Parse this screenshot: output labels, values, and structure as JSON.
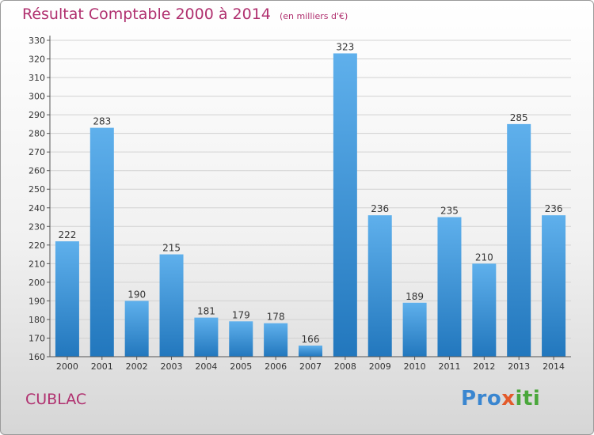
{
  "title": "Résultat Comptable 2000 à 2014",
  "subtitle": "(en milliers d'€)",
  "place": "CUBLAC",
  "logo": {
    "p1": "Pro",
    "p2": "x",
    "p3": "iti"
  },
  "colors": {
    "title": "#b0306f",
    "bar_top": "#5fb0ec",
    "bar_bottom": "#2277bd"
  },
  "chart_data": {
    "type": "bar",
    "categories": [
      "2000",
      "2001",
      "2002",
      "2003",
      "2004",
      "2005",
      "2006",
      "2007",
      "2008",
      "2009",
      "2010",
      "2011",
      "2012",
      "2013",
      "2014"
    ],
    "values": [
      222,
      283,
      190,
      215,
      181,
      179,
      178,
      166,
      323,
      236,
      189,
      235,
      210,
      285,
      236
    ],
    "title": "Résultat Comptable 2000 à 2014",
    "subtitle": "(en milliers d'€)",
    "ylim": [
      160,
      330
    ],
    "ytick_step": 10,
    "grid": true,
    "data_labels": true
  }
}
